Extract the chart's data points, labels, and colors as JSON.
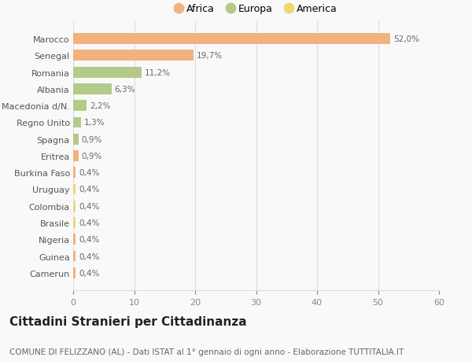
{
  "categories": [
    "Marocco",
    "Senegal",
    "Romania",
    "Albania",
    "Macedonia d/N.",
    "Regno Unito",
    "Spagna",
    "Eritrea",
    "Burkina Faso",
    "Uruguay",
    "Colombia",
    "Brasile",
    "Nigeria",
    "Guinea",
    "Camerun"
  ],
  "values": [
    52.0,
    19.7,
    11.2,
    6.3,
    2.2,
    1.3,
    0.9,
    0.9,
    0.4,
    0.4,
    0.4,
    0.4,
    0.4,
    0.4,
    0.4
  ],
  "labels": [
    "52,0%",
    "19,7%",
    "11,2%",
    "6,3%",
    "2,2%",
    "1,3%",
    "0,9%",
    "0,9%",
    "0,4%",
    "0,4%",
    "0,4%",
    "0,4%",
    "0,4%",
    "0,4%",
    "0,4%"
  ],
  "continents": [
    "Africa",
    "Africa",
    "Europa",
    "Europa",
    "Europa",
    "Europa",
    "Europa",
    "Africa",
    "Africa",
    "America",
    "America",
    "America",
    "Africa",
    "Africa",
    "Africa"
  ],
  "colors": {
    "Africa": "#F2B27E",
    "Europa": "#B5C98A",
    "America": "#F0D870"
  },
  "title": "Cittadini Stranieri per Cittadinanza",
  "subtitle": "COMUNE DI FELIZZANO (AL) - Dati ISTAT al 1° gennaio di ogni anno - Elaborazione TUTTITALIA.IT",
  "xlim": [
    0,
    60
  ],
  "xticks": [
    0,
    10,
    20,
    30,
    40,
    50,
    60
  ],
  "bg_color": "#f9f9f9",
  "grid_color": "#dddddd",
  "bar_height": 0.65,
  "title_fontsize": 11,
  "subtitle_fontsize": 7.5,
  "label_fontsize": 7.5,
  "tick_fontsize": 8,
  "legend_fontsize": 9
}
